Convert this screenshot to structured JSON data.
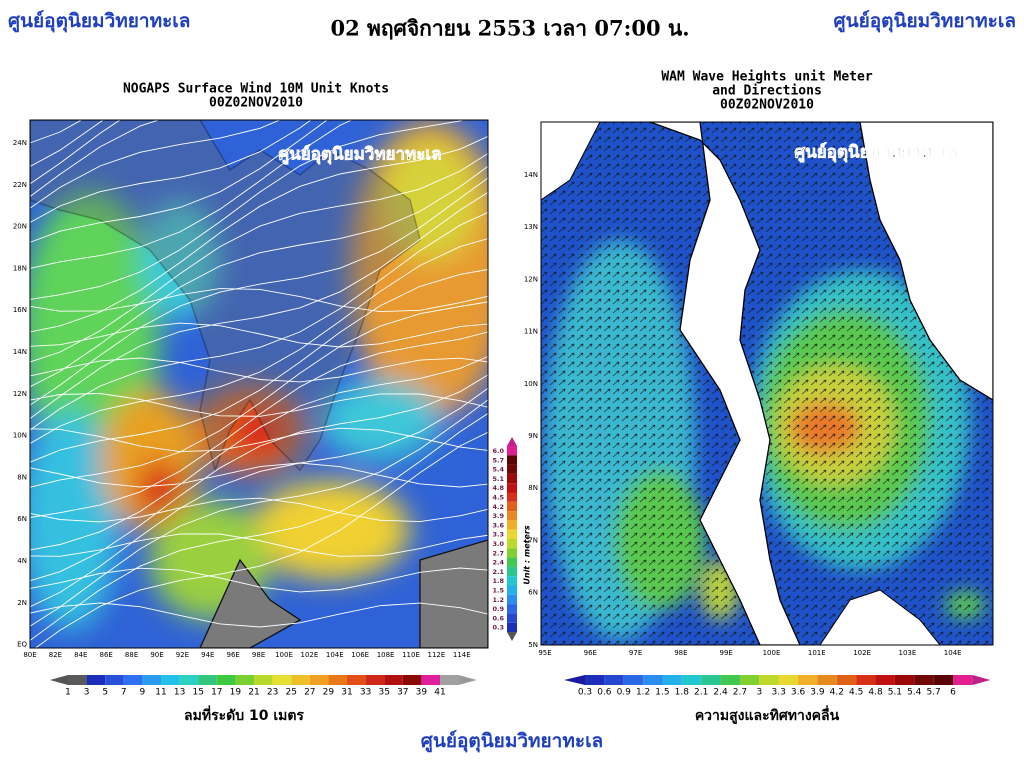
{
  "header": {
    "left": "ศูนย์อุตุนิยมวิทยาทะเล",
    "title": "02 พฤศจิกายน 2553 เวลา 07:00 น.",
    "right": "ศูนย์อุตุนิยมวิทยาทะเล"
  },
  "wind_map": {
    "title": [
      "NOGAPS Surface Wind 10M Unit Knots",
      "00Z02NOV2010"
    ],
    "watermark": "ศูนย์อุตุนิยมวิทยาทะเล",
    "lat_labels": [
      "24N",
      "22N",
      "20N",
      "18N",
      "16N",
      "14N",
      "12N",
      "10N",
      "8N",
      "6N",
      "4N",
      "2N",
      "EQ"
    ],
    "lon_labels": [
      "80E",
      "82E",
      "84E",
      "86E",
      "88E",
      "90E",
      "92E",
      "94E",
      "96E",
      "98E",
      "100E",
      "102E",
      "104E",
      "106E",
      "108E",
      "110E",
      "112E",
      "114E"
    ],
    "colorbar_labels": [
      "1",
      "3",
      "5",
      "7",
      "9",
      "11",
      "13",
      "15",
      "17",
      "19",
      "21",
      "23",
      "25",
      "27",
      "29",
      "31",
      "33",
      "35",
      "37",
      "39",
      "41"
    ],
    "caption": "ลมที่ระดับ 10 เมตร"
  },
  "scale_bar": {
    "labels": [
      "6.0",
      "5.7",
      "5.4",
      "5.1",
      "4.8",
      "4.5",
      "4.2",
      "3.9",
      "3.6",
      "3.3",
      "3.0",
      "2.7",
      "2.4",
      "2.1",
      "1.8",
      "1.5",
      "1.2",
      "0.9",
      "0.6",
      "0.3"
    ],
    "unit": "Unit : meters"
  },
  "wave_map": {
    "title": [
      "WAM Wave Heights unit Meter",
      "and Directions",
      "00Z02NOV2010"
    ],
    "watermark": "ศูนย์อุตุนิยมวิทยาทะเล",
    "lat_labels": [
      "14N",
      "13N",
      "12N",
      "11N",
      "10N",
      "9N",
      "8N",
      "7N",
      "6N",
      "5N"
    ],
    "lon_labels": [
      "95E",
      "96E",
      "97E",
      "98E",
      "99E",
      "100E",
      "101E",
      "102E",
      "103E",
      "104E"
    ],
    "colorbar_labels": [
      "0.3",
      "0.6",
      "0.9",
      "1.2",
      "1.5",
      "1.8",
      "2.1",
      "2.4",
      "2.7",
      "3",
      "3.3",
      "3.6",
      "3.9",
      "4.2",
      "4.5",
      "4.8",
      "5.1",
      "5.4",
      "5.7",
      "6"
    ],
    "caption": "ความสูงและทิศทางคลื่น"
  },
  "footer": "ศูนย์อุตุนิยมวิทยาทะเล"
}
